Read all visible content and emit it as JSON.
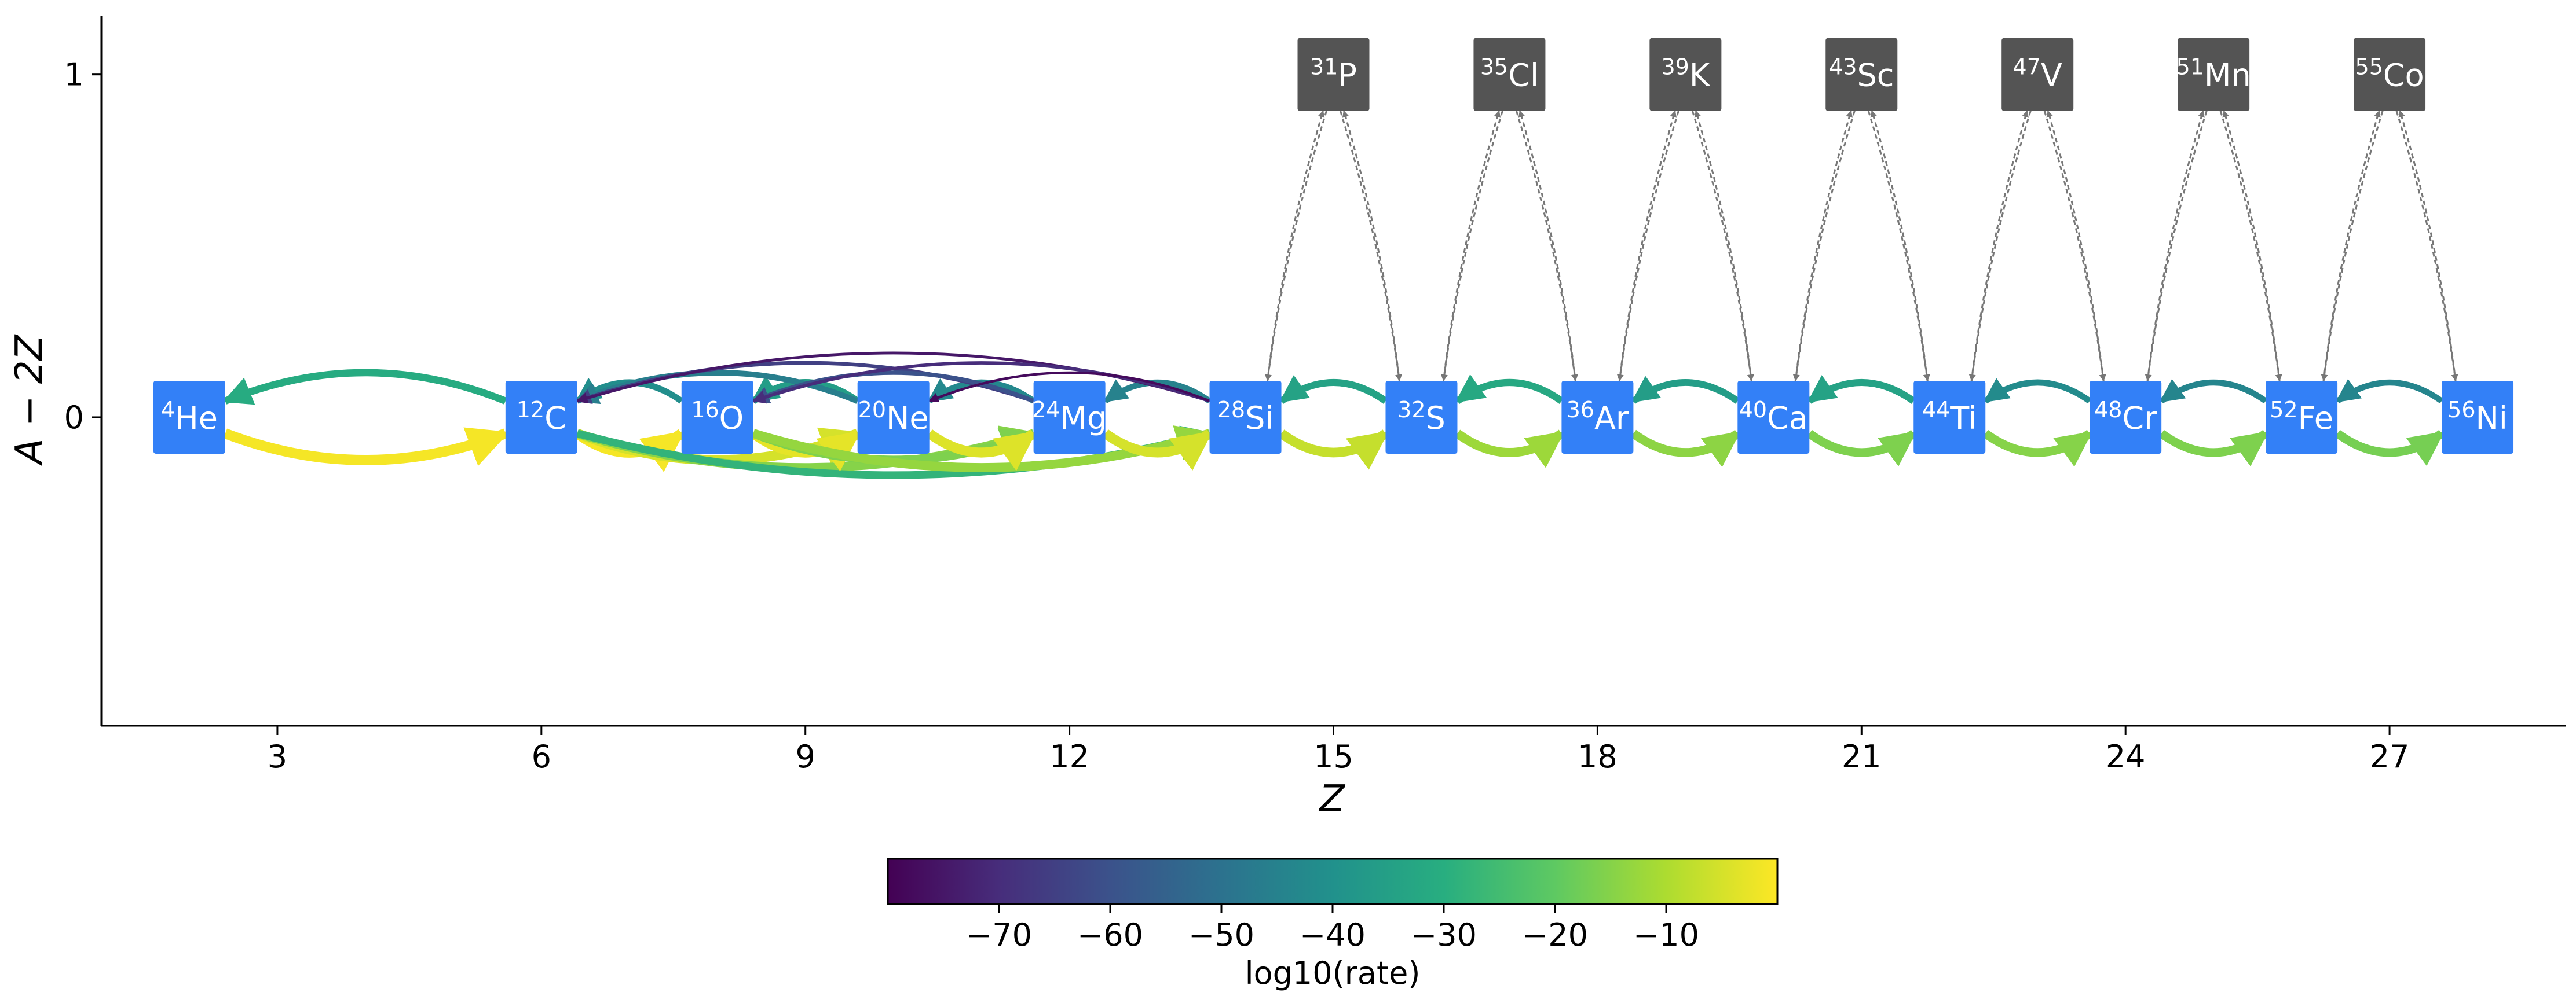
{
  "chart_data": {
    "type": "network",
    "xlabel": "Z",
    "ylabel": "A − 2Z",
    "x_ticks": [
      3,
      6,
      9,
      12,
      15,
      18,
      21,
      24,
      27
    ],
    "y_ticks": [
      0,
      1
    ],
    "xlim": [
      1.0,
      29.0
    ],
    "ylim": [
      -0.9,
      1.17
    ],
    "nodes": [
      {
        "id": "he4",
        "mass": "4",
        "symbol": "He",
        "z": 2,
        "n_minus_z": 0,
        "color": "#3380f7"
      },
      {
        "id": "c12",
        "mass": "12",
        "symbol": "C",
        "z": 6,
        "n_minus_z": 0,
        "color": "#3380f7"
      },
      {
        "id": "o16",
        "mass": "16",
        "symbol": "O",
        "z": 8,
        "n_minus_z": 0,
        "color": "#3380f7"
      },
      {
        "id": "ne20",
        "mass": "20",
        "symbol": "Ne",
        "z": 10,
        "n_minus_z": 0,
        "color": "#3380f7"
      },
      {
        "id": "mg24",
        "mass": "24",
        "symbol": "Mg",
        "z": 12,
        "n_minus_z": 0,
        "color": "#3380f7"
      },
      {
        "id": "si28",
        "mass": "28",
        "symbol": "Si",
        "z": 14,
        "n_minus_z": 0,
        "color": "#3380f7"
      },
      {
        "id": "s32",
        "mass": "32",
        "symbol": "S",
        "z": 16,
        "n_minus_z": 0,
        "color": "#3380f7"
      },
      {
        "id": "ar36",
        "mass": "36",
        "symbol": "Ar",
        "z": 18,
        "n_minus_z": 0,
        "color": "#3380f7"
      },
      {
        "id": "ca40",
        "mass": "40",
        "symbol": "Ca",
        "z": 20,
        "n_minus_z": 0,
        "color": "#3380f7"
      },
      {
        "id": "ti44",
        "mass": "44",
        "symbol": "Ti",
        "z": 22,
        "n_minus_z": 0,
        "color": "#3380f7"
      },
      {
        "id": "cr48",
        "mass": "48",
        "symbol": "Cr",
        "z": 24,
        "n_minus_z": 0,
        "color": "#3380f7"
      },
      {
        "id": "fe52",
        "mass": "52",
        "symbol": "Fe",
        "z": 26,
        "n_minus_z": 0,
        "color": "#3380f7"
      },
      {
        "id": "ni56",
        "mass": "56",
        "symbol": "Ni",
        "z": 28,
        "n_minus_z": 0,
        "color": "#3380f7"
      },
      {
        "id": "p31",
        "mass": "31",
        "symbol": "P",
        "z": 15,
        "n_minus_z": 1,
        "color": "#545454"
      },
      {
        "id": "cl35",
        "mass": "35",
        "symbol": "Cl",
        "z": 17,
        "n_minus_z": 1,
        "color": "#545454"
      },
      {
        "id": "k39",
        "mass": "39",
        "symbol": "K",
        "z": 19,
        "n_minus_z": 1,
        "color": "#545454"
      },
      {
        "id": "sc43",
        "mass": "43",
        "symbol": "Sc",
        "z": 21,
        "n_minus_z": 1,
        "color": "#545454"
      },
      {
        "id": "v47",
        "mass": "47",
        "symbol": "V",
        "z": 23,
        "n_minus_z": 1,
        "color": "#545454"
      },
      {
        "id": "mn51",
        "mass": "51",
        "symbol": "Mn",
        "z": 25,
        "n_minus_z": 1,
        "color": "#545454"
      },
      {
        "id": "co55",
        "mass": "55",
        "symbol": "Co",
        "z": 27,
        "n_minus_z": 1,
        "color": "#545454"
      }
    ],
    "edges": [
      {
        "from": "he4",
        "to": "c12",
        "log10_rate": -1,
        "style": "solid"
      },
      {
        "from": "c12",
        "to": "he4",
        "log10_rate": -31,
        "style": "solid"
      },
      {
        "from": "c12",
        "to": "o16",
        "log10_rate": -1,
        "style": "solid"
      },
      {
        "from": "c12",
        "to": "ne20",
        "log10_rate": -5,
        "style": "solid"
      },
      {
        "from": "c12",
        "to": "mg24",
        "log10_rate": -15,
        "style": "solid"
      },
      {
        "from": "c12",
        "to": "si28",
        "log10_rate": -28,
        "style": "solid"
      },
      {
        "from": "o16",
        "to": "c12",
        "log10_rate": -41,
        "style": "solid"
      },
      {
        "from": "o16",
        "to": "ne20",
        "log10_rate": -3,
        "style": "solid"
      },
      {
        "from": "o16",
        "to": "mg24",
        "log10_rate": -16,
        "style": "solid"
      },
      {
        "from": "o16",
        "to": "si28",
        "log10_rate": -13,
        "style": "solid"
      },
      {
        "from": "ne20",
        "to": "o16",
        "log10_rate": -36,
        "style": "solid"
      },
      {
        "from": "ne20",
        "to": "c12",
        "log10_rate": -46,
        "style": "solid"
      },
      {
        "from": "ne20",
        "to": "mg24",
        "log10_rate": -4,
        "style": "solid"
      },
      {
        "from": "mg24",
        "to": "ne20",
        "log10_rate": -43,
        "style": "solid"
      },
      {
        "from": "mg24",
        "to": "c12",
        "log10_rate": -65,
        "style": "solid"
      },
      {
        "from": "mg24",
        "to": "o16",
        "log10_rate": -60,
        "style": "solid"
      },
      {
        "from": "mg24",
        "to": "si28",
        "log10_rate": -5,
        "style": "solid"
      },
      {
        "from": "si28",
        "to": "mg24",
        "log10_rate": -45,
        "style": "solid"
      },
      {
        "from": "si28",
        "to": "c12",
        "log10_rate": -75,
        "style": "solid"
      },
      {
        "from": "si28",
        "to": "o16",
        "log10_rate": -70,
        "style": "solid"
      },
      {
        "from": "si28",
        "to": "ne20",
        "log10_rate": -78,
        "style": "solid"
      },
      {
        "from": "si28",
        "to": "s32",
        "log10_rate": -7,
        "style": "solid"
      },
      {
        "from": "s32",
        "to": "si28",
        "log10_rate": -34,
        "style": "solid"
      },
      {
        "from": "s32",
        "to": "ar36",
        "log10_rate": -12,
        "style": "solid"
      },
      {
        "from": "ar36",
        "to": "s32",
        "log10_rate": -32,
        "style": "solid"
      },
      {
        "from": "ar36",
        "to": "ca40",
        "log10_rate": -14,
        "style": "solid"
      },
      {
        "from": "ca40",
        "to": "ar36",
        "log10_rate": -36,
        "style": "solid"
      },
      {
        "from": "ca40",
        "to": "ti44",
        "log10_rate": -16,
        "style": "solid"
      },
      {
        "from": "ti44",
        "to": "ca40",
        "log10_rate": -34,
        "style": "solid"
      },
      {
        "from": "ti44",
        "to": "cr48",
        "log10_rate": -15,
        "style": "solid"
      },
      {
        "from": "cr48",
        "to": "ti44",
        "log10_rate": -42,
        "style": "solid"
      },
      {
        "from": "cr48",
        "to": "fe52",
        "log10_rate": -16,
        "style": "solid"
      },
      {
        "from": "fe52",
        "to": "cr48",
        "log10_rate": -44,
        "style": "solid"
      },
      {
        "from": "fe52",
        "to": "ni56",
        "log10_rate": -17,
        "style": "solid"
      },
      {
        "from": "ni56",
        "to": "fe52",
        "log10_rate": -44,
        "style": "solid"
      },
      {
        "from": "si28",
        "to": "p31",
        "style": "dashed"
      },
      {
        "from": "p31",
        "to": "si28",
        "style": "dashed"
      },
      {
        "from": "p31",
        "to": "s32",
        "style": "dashed"
      },
      {
        "from": "s32",
        "to": "p31",
        "style": "dashed"
      },
      {
        "from": "s32",
        "to": "cl35",
        "style": "dashed"
      },
      {
        "from": "cl35",
        "to": "s32",
        "style": "dashed"
      },
      {
        "from": "cl35",
        "to": "ar36",
        "style": "dashed"
      },
      {
        "from": "ar36",
        "to": "cl35",
        "style": "dashed"
      },
      {
        "from": "ar36",
        "to": "k39",
        "style": "dashed"
      },
      {
        "from": "k39",
        "to": "ar36",
        "style": "dashed"
      },
      {
        "from": "k39",
        "to": "ca40",
        "style": "dashed"
      },
      {
        "from": "ca40",
        "to": "k39",
        "style": "dashed"
      },
      {
        "from": "ca40",
        "to": "sc43",
        "style": "dashed"
      },
      {
        "from": "sc43",
        "to": "ca40",
        "style": "dashed"
      },
      {
        "from": "sc43",
        "to": "ti44",
        "style": "dashed"
      },
      {
        "from": "ti44",
        "to": "sc43",
        "style": "dashed"
      },
      {
        "from": "ti44",
        "to": "v47",
        "style": "dashed"
      },
      {
        "from": "v47",
        "to": "ti44",
        "style": "dashed"
      },
      {
        "from": "v47",
        "to": "cr48",
        "style": "dashed"
      },
      {
        "from": "cr48",
        "to": "v47",
        "style": "dashed"
      },
      {
        "from": "cr48",
        "to": "mn51",
        "style": "dashed"
      },
      {
        "from": "mn51",
        "to": "cr48",
        "style": "dashed"
      },
      {
        "from": "mn51",
        "to": "fe52",
        "style": "dashed"
      },
      {
        "from": "fe52",
        "to": "mn51",
        "style": "dashed"
      },
      {
        "from": "fe52",
        "to": "co55",
        "style": "dashed"
      },
      {
        "from": "co55",
        "to": "fe52",
        "style": "dashed"
      },
      {
        "from": "co55",
        "to": "ni56",
        "style": "dashed"
      },
      {
        "from": "ni56",
        "to": "co55",
        "style": "dashed"
      }
    ],
    "colorbar": {
      "label": "log10(rate)",
      "colormap": "viridis",
      "range": [
        -80,
        0
      ],
      "ticks": [
        -70,
        -60,
        -50,
        -40,
        -30,
        -20,
        -10
      ],
      "tick_labels": [
        "−70",
        "−60",
        "−50",
        "−40",
        "−30",
        "−20",
        "−10"
      ],
      "orientation": "horizontal",
      "placement": "bottom"
    },
    "dashed_edge_color": "#777777",
    "grid": false
  }
}
